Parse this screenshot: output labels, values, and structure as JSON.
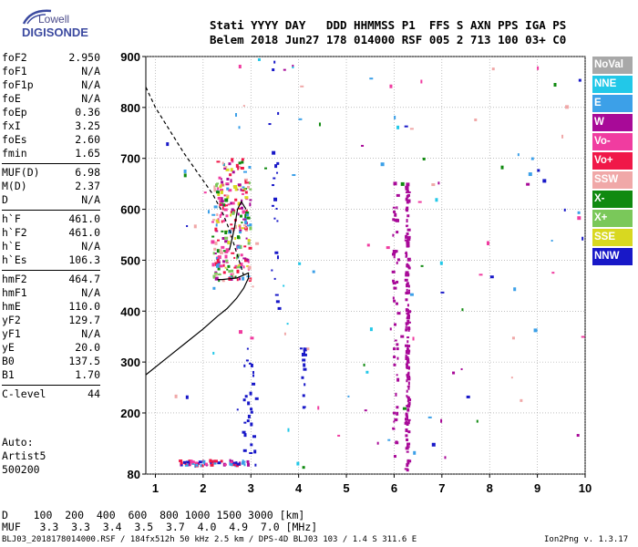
{
  "logo": {
    "line1": "Lowell",
    "line2": "DIGISONDE"
  },
  "header": {
    "line1": "Stati YYYY DAY   DDD HHMMSS P1  FFS S AXN PPS IGA PS",
    "line2": "Belem 2018 Jun27 178 014000 RSF 005 2 713 100 03+ C0"
  },
  "params": {
    "group1": [
      {
        "name": "foF2",
        "value": "2.950"
      },
      {
        "name": "foF1",
        "value": "N/A"
      },
      {
        "name": "foF1p",
        "value": "N/A"
      },
      {
        "name": "foE",
        "value": "N/A"
      },
      {
        "name": "foEp",
        "value": "0.36"
      },
      {
        "name": "fxI",
        "value": "3.25"
      },
      {
        "name": "foEs",
        "value": "2.60"
      },
      {
        "name": "fmin",
        "value": "1.65"
      }
    ],
    "group2": [
      {
        "name": "MUF(D)",
        "value": "6.98"
      },
      {
        "name": "M(D)",
        "value": "2.37"
      },
      {
        "name": "D",
        "value": "N/A"
      }
    ],
    "group3": [
      {
        "name": "h`F",
        "value": "461.0"
      },
      {
        "name": "h`F2",
        "value": "461.0"
      },
      {
        "name": "h`E",
        "value": "N/A"
      },
      {
        "name": "h`Es",
        "value": "106.3"
      }
    ],
    "group4": [
      {
        "name": "hmF2",
        "value": "464.7"
      },
      {
        "name": "hmF1",
        "value": "N/A"
      },
      {
        "name": "hmE",
        "value": "110.0"
      },
      {
        "name": "yF2",
        "value": "129.7"
      },
      {
        "name": "yF1",
        "value": "N/A"
      },
      {
        "name": "yE",
        "value": "20.0"
      },
      {
        "name": "B0",
        "value": "137.5"
      },
      {
        "name": "B1",
        "value": "1.70"
      }
    ],
    "group5": [
      {
        "name": "C-level",
        "value": "44"
      }
    ]
  },
  "auto": {
    "line1": "Auto:",
    "line2": "Artist5",
    "line3": "500200"
  },
  "legend": [
    {
      "label": "NoVal",
      "color": "#a8a8a8"
    },
    {
      "label": "NNE",
      "color": "#22c8e8"
    },
    {
      "label": "E",
      "color": "#3ca0e8"
    },
    {
      "label": "W",
      "color": "#a80a98"
    },
    {
      "label": "Vo-",
      "color": "#f03ca0"
    },
    {
      "label": "Vo+",
      "color": "#f01848"
    },
    {
      "label": "SSW",
      "color": "#f0a8a8"
    },
    {
      "label": "X-",
      "color": "#108a10"
    },
    {
      "label": "X+",
      "color": "#7ac85a"
    },
    {
      "label": "SSE",
      "color": "#d8d820"
    },
    {
      "label": "NNW",
      "color": "#1818c8"
    }
  ],
  "bottom": {
    "d_line": "D    100  200  400  600  800 1000 1500 3000 [km]",
    "muf_line": "MUF   3.3  3.3  3.4  3.5  3.7  4.0  4.9  7.0 [MHz]"
  },
  "footer": {
    "left": "BLJ03_2018178014000.RSF / 184fx512h 50 kHz 2.5 km / DPS-4D BLJ03 103 / 1.4 S 311.6 E",
    "right": "Ion2Png v. 1.3.17"
  },
  "chart_data": {
    "type": "scatter",
    "title": "",
    "xlabel": "",
    "ylabel": "",
    "xlim": [
      0.8,
      10
    ],
    "ylim": [
      80,
      900
    ],
    "x_ticks": [
      1,
      2,
      3,
      4,
      5,
      6,
      7,
      8,
      9,
      10
    ],
    "y_ticks": [
      80,
      200,
      300,
      400,
      500,
      600,
      700,
      800,
      900
    ],
    "grid": true,
    "legend_placement": "right",
    "traces": [
      {
        "name": "profile-solid",
        "style": "solid",
        "points": [
          [
            0.8,
            275
          ],
          [
            1.2,
            305
          ],
          [
            1.6,
            335
          ],
          [
            2.0,
            365
          ],
          [
            2.3,
            390
          ],
          [
            2.5,
            405
          ],
          [
            2.7,
            425
          ],
          [
            2.85,
            445
          ],
          [
            2.95,
            465
          ],
          [
            2.95,
            475
          ],
          [
            2.7,
            465
          ],
          [
            2.4,
            462
          ],
          [
            2.3,
            462
          ]
        ]
      },
      {
        "name": "profile-dashed",
        "style": "dashed",
        "points": [
          [
            0.8,
            840
          ],
          [
            1.0,
            800
          ],
          [
            1.3,
            755
          ],
          [
            1.6,
            710
          ],
          [
            1.9,
            670
          ],
          [
            2.2,
            630
          ],
          [
            2.4,
            595
          ],
          [
            2.55,
            560
          ],
          [
            2.65,
            530
          ],
          [
            2.75,
            500
          ],
          [
            2.85,
            470
          ]
        ]
      },
      {
        "name": "trace-upper",
        "style": "solid",
        "points": [
          [
            2.55,
            520
          ],
          [
            2.65,
            560
          ],
          [
            2.72,
            600
          ],
          [
            2.8,
            615
          ],
          [
            2.9,
            600
          ]
        ]
      }
    ],
    "clusters": [
      {
        "x": [
          2.2,
          3.0
        ],
        "y": [
          460,
          700
        ],
        "count": 260,
        "colors": [
          "#f01848",
          "#a80a98",
          "#f03ca0",
          "#f0a8a8",
          "#108a10",
          "#d8d820",
          "#3ca0e8",
          "#7ac85a"
        ]
      },
      {
        "x": [
          1.5,
          2.95
        ],
        "y": [
          96,
          106
        ],
        "count": 70,
        "colors": [
          "#f01848",
          "#f03ca0",
          "#a80a98",
          "#3ca0e8",
          "#1818c8"
        ]
      },
      {
        "x": [
          6.25,
          6.32
        ],
        "y": [
          85,
          650
        ],
        "count": 150,
        "colors": [
          "#a80a98"
        ]
      },
      {
        "x": [
          5.98,
          6.1
        ],
        "y": [
          100,
          660
        ],
        "count": 50,
        "colors": [
          "#a80a98"
        ]
      },
      {
        "x": [
          2.85,
          3.15
        ],
        "y": [
          85,
          330
        ],
        "count": 25,
        "colors": [
          "#1818c8"
        ]
      },
      {
        "x": [
          3.45,
          3.6
        ],
        "y": [
          400,
          900
        ],
        "count": 20,
        "colors": [
          "#1818c8"
        ]
      },
      {
        "x": [
          4.05,
          4.15
        ],
        "y": [
          200,
          350
        ],
        "count": 15,
        "colors": [
          "#1818c8"
        ]
      },
      {
        "x": [
          1.2,
          10
        ],
        "y": [
          90,
          900
        ],
        "count": 120,
        "colors": [
          "#3ca0e8",
          "#22c8e8",
          "#a80a98",
          "#f0a8a8",
          "#f03ca0",
          "#108a10",
          "#1818c8"
        ]
      }
    ]
  }
}
